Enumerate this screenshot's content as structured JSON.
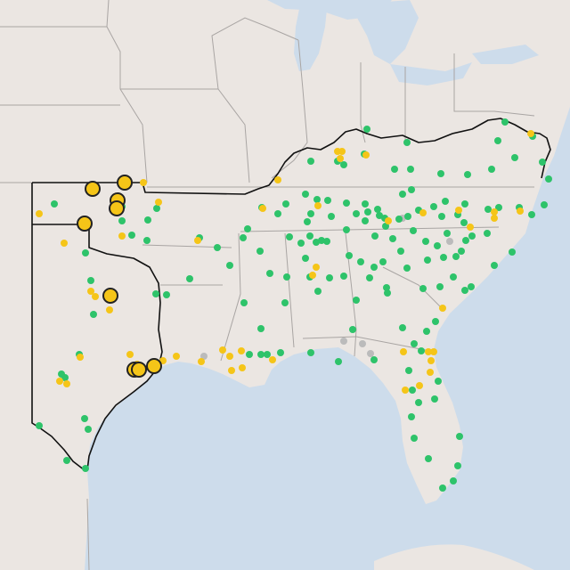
{
  "map": {
    "colors": {
      "water": "#cddceb",
      "land": "#ebe6e2",
      "state_line": "#a9a5a3",
      "region_outline": "#111111",
      "status_normal": "#2ec36a",
      "status_elevated": "#f5c518",
      "status_offline": "#bbbbbb",
      "major_marker_stroke": "#222222"
    },
    "legend_semantics": {
      "green": "normal-site",
      "yellow": "elevated-site",
      "grey": "offline-site",
      "large-yellow": "major-event"
    },
    "site_counts": {
      "normal": 150,
      "elevated": 42,
      "offline": 6,
      "major": 10
    }
  }
}
